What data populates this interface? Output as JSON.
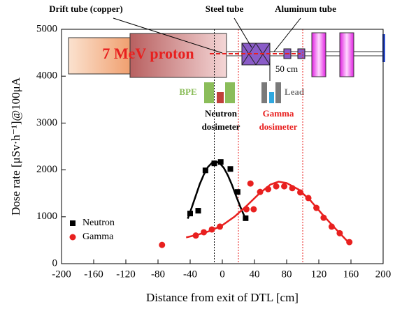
{
  "chart_data": {
    "type": "scatter",
    "xlabel": "Distance from exit of DTL [cm]",
    "ylabel": "Dose rate [μSv·h⁻¹]@100μA",
    "xlim": [
      -200,
      200
    ],
    "xticks": [
      -200,
      -160,
      -120,
      -80,
      -40,
      0,
      40,
      80,
      120,
      160,
      200
    ],
    "ylim": [
      0,
      5000
    ],
    "yticks": [
      0,
      1000,
      2000,
      3000,
      4000,
      5000
    ],
    "legend": "lower left",
    "series": [
      {
        "name": "Neutron",
        "color": "#000000",
        "marker": "square",
        "x": [
          -40,
          -30,
          -21,
          -10,
          -2,
          10,
          19,
          29
        ],
        "values": [
          1070,
          1130,
          1990,
          2140,
          2170,
          2020,
          1530,
          970
        ]
      },
      {
        "name": "Gamma",
        "color": "#e8201f",
        "marker": "circle",
        "x": [
          -75,
          -33,
          -23,
          -13,
          -3,
          30,
          35,
          39,
          47,
          57,
          67,
          77,
          87,
          97,
          107,
          117,
          126,
          136,
          146,
          158
        ],
        "values": [
          400,
          600,
          670,
          730,
          790,
          1160,
          1710,
          1160,
          1530,
          1590,
          1650,
          1650,
          1610,
          1520,
          1400,
          1190,
          980,
          790,
          650,
          460
        ]
      }
    ],
    "fits": [
      {
        "color": "#000000",
        "x": [
          -43,
          -38,
          -33,
          -28,
          -23,
          -18,
          -13,
          -8,
          -3,
          2,
          7,
          12,
          17,
          22,
          27,
          30
        ],
        "values": [
          960,
          1200,
          1450,
          1700,
          1900,
          2060,
          2150,
          2180,
          2140,
          2040,
          1880,
          1680,
          1450,
          1230,
          1030,
          940
        ]
      },
      {
        "color": "#e8201f",
        "x": [
          -45,
          -30,
          -15,
          0,
          15,
          30,
          45,
          60,
          70,
          80,
          95,
          110,
          125,
          140,
          156
        ],
        "values": [
          560,
          620,
          700,
          820,
          1000,
          1230,
          1480,
          1690,
          1750,
          1720,
          1580,
          1340,
          1040,
          760,
          470
        ]
      }
    ],
    "vlines": [
      {
        "x": -10,
        "color": "#000000"
      },
      {
        "x": 20,
        "color": "#e8201f"
      },
      {
        "x": 100,
        "color": "#e8201f"
      }
    ],
    "annotations": {
      "drift_tube": "Drift tube (copper)",
      "steel_tube": "Steel tube",
      "aluminum_tube": "Aluminum tube",
      "proton": "7 MeV proton",
      "distance": "50 cm",
      "bpe": "BPE",
      "lead": "Lead",
      "neutron_dosimeter": [
        "Neutron",
        "dosimeter"
      ],
      "gamma_dosimeter": [
        "Gamma",
        "dosimeter"
      ]
    }
  }
}
